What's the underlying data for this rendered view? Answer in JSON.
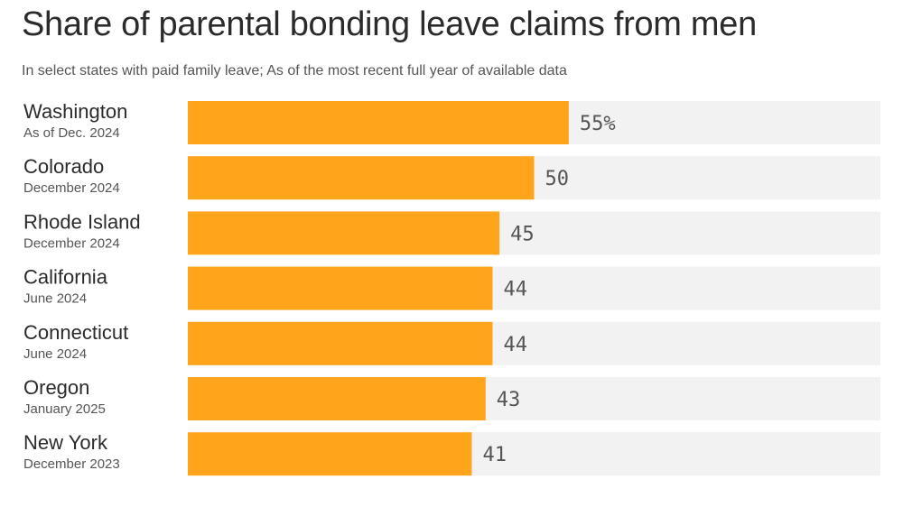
{
  "title": "Share of parental bonding leave claims from men",
  "subtitle": "In select states with paid family leave; As of the most recent full year of available data",
  "colors": {
    "bar": "#FFA41B",
    "track": "#F2F2F2",
    "text": "#2B2B2B",
    "muted": "#555555"
  },
  "chart_data": {
    "type": "bar",
    "orientation": "horizontal",
    "categories": [
      "Washington",
      "Colorado",
      "Rhode Island",
      "California",
      "Connecticut",
      "Oregon",
      "New York"
    ],
    "category_notes": [
      "As of Dec. 2024",
      "December 2024",
      "December 2024",
      "June 2024",
      "June 2024",
      "January 2025",
      "December 2023"
    ],
    "values": [
      55,
      50,
      45,
      44,
      44,
      43,
      41
    ],
    "value_labels": [
      "55%",
      "50",
      "45",
      "44",
      "44",
      "43",
      "41"
    ],
    "xlim": [
      0,
      100
    ],
    "grid": false,
    "legend": "none"
  }
}
